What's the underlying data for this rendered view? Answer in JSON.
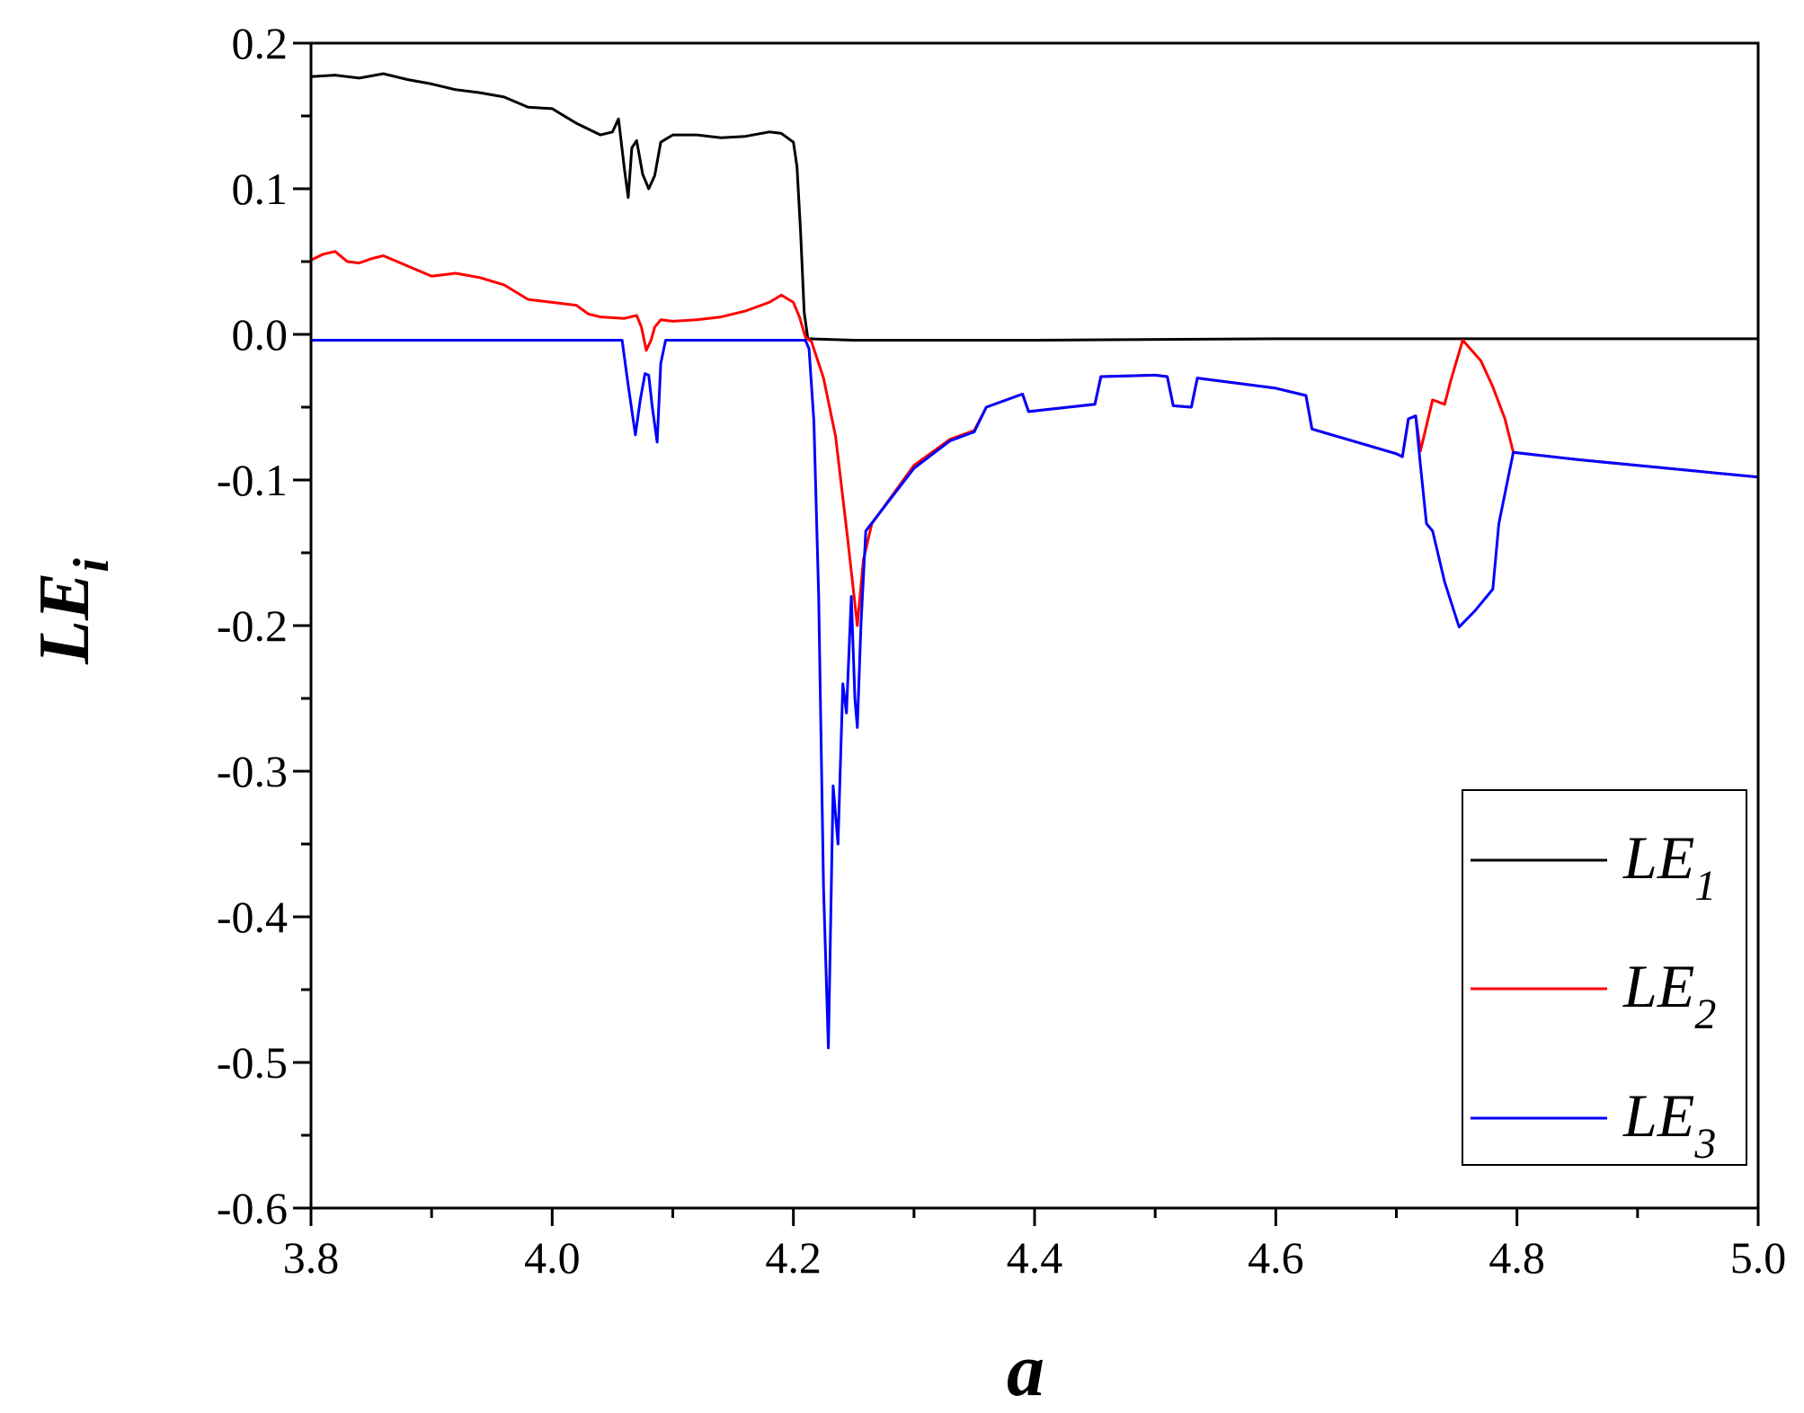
{
  "chart_data": {
    "type": "line",
    "title": "",
    "xlabel": "a",
    "ylabel": {
      "main": "LE",
      "sub": "i"
    },
    "xlim": [
      3.8,
      5.0
    ],
    "ylim": [
      -0.6,
      0.2
    ],
    "xticks": [
      "3.8",
      "4.0",
      "4.2",
      "4.4",
      "4.6",
      "4.8",
      "5.0"
    ],
    "xtick_values": [
      3.8,
      4.0,
      4.2,
      4.4,
      4.6,
      4.8,
      5.0
    ],
    "yticks": [
      "0.2",
      "0.1",
      "0.0",
      "-0.1",
      "-0.2",
      "-0.3",
      "-0.4",
      "-0.5",
      "-0.6"
    ],
    "ytick_values": [
      0.2,
      0.1,
      0.0,
      -0.1,
      -0.2,
      -0.3,
      -0.4,
      -0.5,
      -0.6
    ],
    "grid": false,
    "legend_position": "bottom-right",
    "series": [
      {
        "name": {
          "main": "LE",
          "sub": "1"
        },
        "color": "#000000",
        "points": [
          [
            3.8,
            0.177
          ],
          [
            3.82,
            0.178
          ],
          [
            3.84,
            0.176
          ],
          [
            3.86,
            0.179
          ],
          [
            3.88,
            0.175
          ],
          [
            3.9,
            0.172
          ],
          [
            3.92,
            0.168
          ],
          [
            3.94,
            0.166
          ],
          [
            3.96,
            0.163
          ],
          [
            3.98,
            0.156
          ],
          [
            4.0,
            0.155
          ],
          [
            4.02,
            0.145
          ],
          [
            4.04,
            0.137
          ],
          [
            4.05,
            0.139
          ],
          [
            4.055,
            0.148
          ],
          [
            4.06,
            0.113
          ],
          [
            4.063,
            0.094
          ],
          [
            4.066,
            0.128
          ],
          [
            4.07,
            0.133
          ],
          [
            4.075,
            0.11
          ],
          [
            4.08,
            0.1
          ],
          [
            4.085,
            0.109
          ],
          [
            4.09,
            0.132
          ],
          [
            4.1,
            0.137
          ],
          [
            4.12,
            0.137
          ],
          [
            4.14,
            0.135
          ],
          [
            4.16,
            0.136
          ],
          [
            4.18,
            0.139
          ],
          [
            4.19,
            0.138
          ],
          [
            4.2,
            0.132
          ],
          [
            4.203,
            0.115
          ],
          [
            4.206,
            0.07
          ],
          [
            4.209,
            0.015
          ],
          [
            4.212,
            -0.003
          ],
          [
            4.25,
            -0.004
          ],
          [
            4.3,
            -0.004
          ],
          [
            4.4,
            -0.004
          ],
          [
            4.6,
            -0.003
          ],
          [
            4.8,
            -0.003
          ],
          [
            5.0,
            -0.003
          ]
        ]
      },
      {
        "name": {
          "main": "LE",
          "sub": "2"
        },
        "color": "#ff0000",
        "points": [
          [
            3.8,
            0.051
          ],
          [
            3.81,
            0.055
          ],
          [
            3.82,
            0.057
          ],
          [
            3.83,
            0.05
          ],
          [
            3.84,
            0.049
          ],
          [
            3.85,
            0.052
          ],
          [
            3.86,
            0.054
          ],
          [
            3.88,
            0.047
          ],
          [
            3.9,
            0.04
          ],
          [
            3.92,
            0.042
          ],
          [
            3.94,
            0.039
          ],
          [
            3.96,
            0.034
          ],
          [
            3.98,
            0.024
          ],
          [
            4.0,
            0.022
          ],
          [
            4.02,
            0.02
          ],
          [
            4.03,
            0.014
          ],
          [
            4.04,
            0.012
          ],
          [
            4.06,
            0.011
          ],
          [
            4.07,
            0.013
          ],
          [
            4.074,
            0.005
          ],
          [
            4.078,
            -0.011
          ],
          [
            4.082,
            -0.004
          ],
          [
            4.085,
            0.005
          ],
          [
            4.09,
            0.01
          ],
          [
            4.1,
            0.009
          ],
          [
            4.12,
            0.01
          ],
          [
            4.14,
            0.012
          ],
          [
            4.16,
            0.016
          ],
          [
            4.18,
            0.022
          ],
          [
            4.19,
            0.027
          ],
          [
            4.2,
            0.022
          ],
          [
            4.205,
            0.012
          ],
          [
            4.21,
            -0.002
          ],
          [
            4.215,
            -0.005
          ],
          [
            4.225,
            -0.03
          ],
          [
            4.235,
            -0.07
          ],
          [
            4.245,
            -0.14
          ],
          [
            4.253,
            -0.2
          ],
          [
            4.258,
            -0.155
          ],
          [
            4.265,
            -0.13
          ],
          [
            4.3,
            -0.09
          ],
          [
            4.33,
            -0.072
          ],
          [
            4.35,
            -0.066
          ],
          [
            4.36,
            -0.05
          ],
          [
            4.39,
            -0.041
          ],
          [
            4.395,
            -0.053
          ],
          [
            4.45,
            -0.048
          ],
          [
            4.455,
            -0.029
          ],
          [
            4.5,
            -0.028
          ],
          [
            4.51,
            -0.029
          ],
          [
            4.515,
            -0.049
          ],
          [
            4.53,
            -0.05
          ],
          [
            4.535,
            -0.03
          ],
          [
            4.6,
            -0.037
          ],
          [
            4.625,
            -0.042
          ],
          [
            4.63,
            -0.065
          ],
          [
            4.7,
            -0.082
          ],
          [
            4.705,
            -0.084
          ],
          [
            4.71,
            -0.058
          ],
          [
            4.716,
            -0.056
          ],
          [
            4.72,
            -0.08
          ],
          [
            4.73,
            -0.045
          ],
          [
            4.74,
            -0.048
          ],
          [
            4.745,
            -0.032
          ],
          [
            4.755,
            -0.004
          ],
          [
            4.77,
            -0.018
          ],
          [
            4.78,
            -0.036
          ],
          [
            4.79,
            -0.058
          ],
          [
            4.797,
            -0.081
          ],
          [
            4.85,
            -0.086
          ],
          [
            4.9,
            -0.09
          ],
          [
            4.95,
            -0.094
          ],
          [
            5.0,
            -0.098
          ]
        ]
      },
      {
        "name": {
          "main": "LE",
          "sub": "3"
        },
        "color": "#0000ff",
        "points": [
          [
            3.8,
            -0.004
          ],
          [
            3.9,
            -0.004
          ],
          [
            4.0,
            -0.004
          ],
          [
            4.058,
            -0.004
          ],
          [
            4.063,
            -0.035
          ],
          [
            4.069,
            -0.069
          ],
          [
            4.073,
            -0.045
          ],
          [
            4.077,
            -0.027
          ],
          [
            4.08,
            -0.028
          ],
          [
            4.083,
            -0.05
          ],
          [
            4.087,
            -0.074
          ],
          [
            4.09,
            -0.02
          ],
          [
            4.094,
            -0.004
          ],
          [
            4.15,
            -0.004
          ],
          [
            4.21,
            -0.004
          ],
          [
            4.213,
            -0.01
          ],
          [
            4.217,
            -0.06
          ],
          [
            4.221,
            -0.18
          ],
          [
            4.225,
            -0.38
          ],
          [
            4.229,
            -0.49
          ],
          [
            4.233,
            -0.31
          ],
          [
            4.237,
            -0.35
          ],
          [
            4.241,
            -0.24
          ],
          [
            4.244,
            -0.26
          ],
          [
            4.248,
            -0.18
          ],
          [
            4.251,
            -0.25
          ],
          [
            4.253,
            -0.27
          ],
          [
            4.256,
            -0.2
          ],
          [
            4.26,
            -0.135
          ],
          [
            4.3,
            -0.092
          ],
          [
            4.33,
            -0.073
          ],
          [
            4.35,
            -0.067
          ],
          [
            4.36,
            -0.05
          ],
          [
            4.39,
            -0.041
          ],
          [
            4.395,
            -0.053
          ],
          [
            4.45,
            -0.048
          ],
          [
            4.455,
            -0.029
          ],
          [
            4.5,
            -0.028
          ],
          [
            4.51,
            -0.029
          ],
          [
            4.515,
            -0.049
          ],
          [
            4.53,
            -0.05
          ],
          [
            4.535,
            -0.03
          ],
          [
            4.6,
            -0.037
          ],
          [
            4.625,
            -0.042
          ],
          [
            4.63,
            -0.065
          ],
          [
            4.7,
            -0.082
          ],
          [
            4.705,
            -0.084
          ],
          [
            4.71,
            -0.058
          ],
          [
            4.716,
            -0.056
          ],
          [
            4.72,
            -0.09
          ],
          [
            4.725,
            -0.13
          ],
          [
            4.73,
            -0.135
          ],
          [
            4.74,
            -0.17
          ],
          [
            4.752,
            -0.201
          ],
          [
            4.765,
            -0.19
          ],
          [
            4.78,
            -0.175
          ],
          [
            4.785,
            -0.13
          ],
          [
            4.797,
            -0.081
          ],
          [
            4.85,
            -0.086
          ],
          [
            4.9,
            -0.09
          ],
          [
            4.95,
            -0.094
          ],
          [
            5.0,
            -0.098
          ]
        ]
      }
    ]
  }
}
